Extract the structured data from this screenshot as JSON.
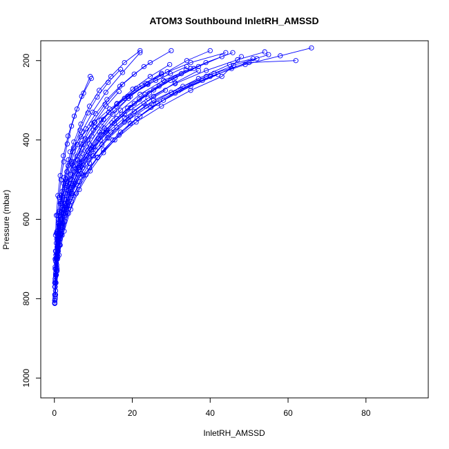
{
  "chart_data": {
    "type": "line",
    "title": "ATOM3 Southbound InletRH_AMSSD",
    "xlabel": "InletRH_AMSSD",
    "ylabel": "Pressure (mbar)",
    "xlim": [
      -3.5,
      96
    ],
    "ylim": [
      1050,
      150
    ],
    "y_reversed": true,
    "x_ticks": [
      0,
      20,
      40,
      60,
      80
    ],
    "y_ticks": [
      200,
      400,
      600,
      800,
      1000
    ],
    "grid": false,
    "legend": "none",
    "line_color": "#0000ff",
    "marker": "open-circle",
    "series": [
      {
        "x": [
          0.1,
          0.1,
          0.2,
          0.3,
          0.5,
          0.9,
          1.5,
          2.3,
          3.5,
          5.1,
          7.0,
          9.2
        ],
        "y": [
          812,
          760,
          700,
          640,
          590,
          540,
          490,
          440,
          390,
          340,
          290,
          240
        ]
      },
      {
        "x": [
          0.2,
          0.3,
          0.4,
          0.7,
          1.2,
          2.0,
          3.2,
          4.8,
          7.0,
          9.8,
          13.2,
          17.5,
          22.0
        ],
        "y": [
          800,
          740,
          680,
          630,
          580,
          530,
          480,
          430,
          380,
          330,
          280,
          230,
          180
        ]
      },
      {
        "x": [
          0.1,
          0.2,
          0.5,
          1.0,
          1.8,
          3.0,
          4.6,
          6.8,
          9.5,
          13.0,
          17.5,
          23.0,
          30.0
        ],
        "y": [
          790,
          720,
          660,
          610,
          560,
          510,
          460,
          410,
          360,
          310,
          260,
          215,
          175
        ]
      },
      {
        "x": [
          0.3,
          0.5,
          0.9,
          1.6,
          2.6,
          4.0,
          6.0,
          8.6,
          12.0,
          16.0,
          21.0,
          27.5,
          35.0,
          44.0
        ],
        "y": [
          780,
          710,
          650,
          600,
          550,
          500,
          450,
          400,
          350,
          310,
          270,
          235,
          205,
          180
        ]
      },
      {
        "x": [
          0.4,
          0.8,
          1.5,
          2.6,
          4.2,
          6.4,
          9.4,
          13.2,
          18.0,
          24.0,
          31.0,
          39.0,
          47.0,
          54.0
        ],
        "y": [
          760,
          690,
          630,
          575,
          525,
          475,
          425,
          380,
          335,
          295,
          258,
          225,
          198,
          178
        ]
      },
      {
        "x": [
          0.2,
          0.6,
          1.3,
          2.5,
          4.3,
          6.8,
          10.0,
          14.0,
          19.0,
          25.0,
          32.0,
          40.0,
          49.0,
          58.0,
          66.0
        ],
        "y": [
          770,
          700,
          640,
          585,
          535,
          485,
          440,
          395,
          350,
          310,
          275,
          240,
          210,
          188,
          168
        ]
      },
      {
        "x": [
          0.5,
          1.0,
          1.8,
          3.0,
          4.8,
          7.2,
          10.5,
          14.5,
          19.5,
          25.5,
          33.0,
          41.0,
          50.0,
          62.0
        ],
        "y": [
          740,
          670,
          615,
          565,
          515,
          470,
          425,
          380,
          340,
          300,
          265,
          232,
          205,
          200
        ]
      },
      {
        "x": [
          0.1,
          0.3,
          0.7,
          1.2,
          2.0,
          3.2,
          4.8,
          7.0,
          10.0,
          14.0,
          19.0,
          26.0,
          34.0
        ],
        "y": [
          805,
          735,
          670,
          615,
          565,
          515,
          465,
          420,
          375,
          330,
          290,
          250,
          215
        ]
      },
      {
        "x": [
          0.6,
          1.4,
          2.8,
          4.8,
          7.5,
          11.0,
          15.5,
          21.0,
          27.5,
          35.0,
          43.0,
          48.0
        ],
        "y": [
          720,
          650,
          590,
          540,
          490,
          445,
          400,
          355,
          315,
          275,
          240,
          190
        ]
      },
      {
        "x": [
          0.2,
          0.4,
          0.9,
          1.6,
          2.7,
          4.3,
          6.5,
          9.3,
          12.8,
          17.0,
          22.0,
          28.0,
          35.0
        ],
        "y": [
          790,
          725,
          665,
          610,
          560,
          510,
          460,
          415,
          370,
          325,
          285,
          250,
          220
        ]
      },
      {
        "x": [
          0.8,
          1.6,
          2.9,
          4.6,
          6.9,
          9.9,
          13.6,
          18.0,
          23.5,
          30.0,
          37.0,
          45.0,
          51.0
        ],
        "y": [
          700,
          640,
          585,
          535,
          485,
          440,
          395,
          355,
          315,
          280,
          245,
          210,
          195
        ]
      },
      {
        "x": [
          0.1,
          0.2,
          0.4,
          0.7,
          1.1,
          1.7,
          2.5,
          3.6,
          5.0,
          6.8,
          9.0,
          11.5,
          14.5,
          18.0,
          22.0
        ],
        "y": [
          810,
          750,
          690,
          635,
          585,
          540,
          495,
          450,
          405,
          360,
          315,
          275,
          240,
          205,
          175
        ]
      },
      {
        "x": [
          1.0,
          2.2,
          3.9,
          6.1,
          9.0,
          12.6,
          17.0,
          22.0,
          28.0,
          35.0,
          42.0
        ],
        "y": [
          680,
          620,
          565,
          515,
          470,
          425,
          380,
          340,
          300,
          265,
          235
        ]
      },
      {
        "x": [
          0.3,
          0.6,
          1.1,
          1.9,
          3.0,
          4.5,
          6.5,
          9.0,
          12.0,
          15.5,
          19.5,
          24.0,
          29.0,
          34.0,
          40.0
        ],
        "y": [
          780,
          715,
          655,
          600,
          550,
          500,
          455,
          410,
          365,
          325,
          290,
          258,
          228,
          200,
          175
        ]
      },
      {
        "x": [
          0.2,
          0.5,
          1.0,
          1.8,
          2.9,
          4.4,
          6.3,
          8.7,
          11.6,
          15.0,
          19.0,
          23.5
        ],
        "y": [
          795,
          730,
          672,
          620,
          570,
          520,
          470,
          425,
          380,
          335,
          295,
          258
        ]
      },
      {
        "x": [
          0.1,
          0.2,
          0.3,
          0.6,
          1.0,
          1.6,
          2.4,
          3.5,
          4.9,
          6.6,
          8.6,
          11.0,
          13.8,
          17.0
        ],
        "y": [
          812,
          760,
          705,
          650,
          600,
          555,
          510,
          465,
          420,
          375,
          332,
          292,
          255,
          222
        ]
      },
      {
        "x": [
          0.7,
          1.5,
          2.7,
          4.3,
          6.4,
          9.0,
          12.2,
          16.0,
          20.5,
          25.5,
          31.0,
          37.0
        ],
        "y": [
          730,
          665,
          605,
          555,
          505,
          458,
          412,
          368,
          328,
          290,
          256,
          225
        ]
      },
      {
        "x": [
          1.2,
          2.5,
          4.2,
          6.4,
          9.2,
          12.6,
          16.6,
          21.2,
          26.5,
          32.5,
          39.0,
          46.0,
          55.0
        ],
        "y": [
          690,
          630,
          575,
          525,
          478,
          432,
          388,
          346,
          308,
          272,
          240,
          212,
          185
        ]
      },
      {
        "x": [
          0.1,
          0.1,
          0.2,
          0.3,
          0.5,
          0.8,
          1.2,
          1.7,
          2.4,
          3.3,
          4.4,
          5.8,
          7.5,
          9.5
        ],
        "y": [
          810,
          770,
          725,
          680,
          635,
          590,
          545,
          500,
          455,
          410,
          365,
          322,
          282,
          245
        ]
      },
      {
        "x": [
          0.4,
          0.9,
          1.7,
          2.8,
          4.3,
          6.3,
          8.8,
          11.8,
          15.4,
          19.6,
          24.4,
          29.8,
          35.8
        ],
        "y": [
          760,
          695,
          637,
          585,
          535,
          488,
          443,
          400,
          358,
          318,
          282,
          250,
          220
        ]
      },
      {
        "x": [
          2.0,
          3.6,
          5.6,
          8.1,
          11.2,
          15.0,
          19.5,
          24.8,
          31.0,
          38.0,
          45.5,
          52.0
        ],
        "y": [
          640,
          585,
          535,
          488,
          443,
          400,
          358,
          318,
          282,
          250,
          220,
          195
        ]
      },
      {
        "x": [
          0.2,
          0.4,
          0.8,
          1.4,
          2.3,
          3.5,
          5.1,
          7.1,
          9.6,
          12.6,
          16.1,
          20.1,
          24.6,
          29.6
        ],
        "y": [
          800,
          740,
          682,
          628,
          576,
          527,
          480,
          434,
          390,
          348,
          308,
          272,
          240,
          210
        ]
      },
      {
        "x": [
          0.3,
          0.7,
          1.3,
          2.2,
          3.5,
          5.2,
          7.4,
          10.1,
          13.4,
          17.3,
          21.8,
          26.9,
          32.6,
          38.9,
          45.8
        ],
        "y": [
          790,
          725,
          665,
          610,
          558,
          510,
          463,
          418,
          375,
          335,
          298,
          264,
          233,
          205,
          180
        ]
      },
      {
        "x": [
          0.1,
          0.3,
          0.6,
          1.1,
          1.8,
          2.8,
          4.1,
          5.8,
          7.9,
          10.4,
          13.3,
          16.6
        ],
        "y": [
          805,
          745,
          688,
          634,
          583,
          534,
          487,
          441,
          397,
          355,
          315,
          278
        ]
      },
      {
        "x": [
          1.5,
          3.0,
          5.0,
          7.5,
          10.5,
          14.0,
          18.0,
          22.5,
          27.5
        ],
        "y": [
          560,
          505,
          455,
          410,
          368,
          330,
          295,
          262,
          232
        ]
      },
      {
        "x": [
          3.0,
          5.5,
          8.5,
          12.0,
          16.0,
          20.5,
          25.5,
          31.0,
          37.0,
          43.0
        ],
        "y": [
          520,
          472,
          428,
          386,
          346,
          308,
          274,
          243,
          215,
          190
        ]
      },
      {
        "x": [
          0.5,
          1.2,
          2.3,
          3.8,
          5.8,
          8.3,
          11.3,
          14.8,
          18.8,
          23.3,
          28.3,
          33.8
        ],
        "y": [
          700,
          640,
          585,
          533,
          485,
          440,
          397,
          357,
          320,
          285,
          253,
          224
        ]
      },
      {
        "x": [
          0.1,
          0.2,
          0.4,
          0.8,
          1.3,
          2.0,
          3.0,
          4.3,
          6.0,
          8.1,
          10.6,
          13.5,
          16.8,
          20.5,
          24.6
        ],
        "y": [
          812,
          755,
          698,
          643,
          592,
          544,
          498,
          454,
          412,
          372,
          334,
          298,
          265,
          234,
          205
        ]
      },
      {
        "x": [
          4.0,
          6.8,
          10.2,
          14.2,
          18.8,
          24.0,
          29.8
        ],
        "y": [
          430,
          392,
          356,
          322,
          290,
          260,
          233
        ]
      },
      {
        "x": [
          6.0,
          9.5,
          13.5,
          18.0,
          23.0,
          28.5
        ],
        "y": [
          470,
          425,
          383,
          344,
          308,
          275
        ]
      }
    ]
  }
}
